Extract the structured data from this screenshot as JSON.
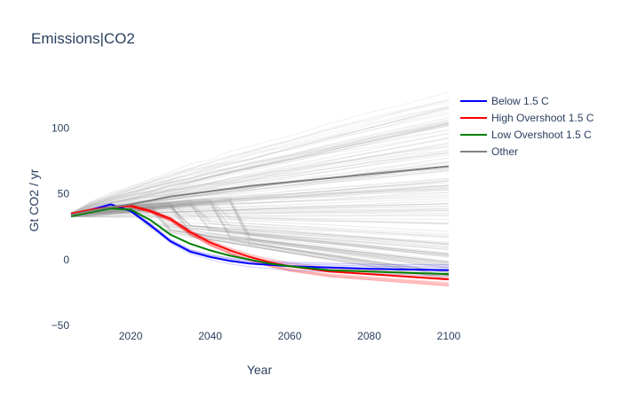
{
  "chart_data": {
    "type": "line",
    "title": "Emissions|CO2",
    "xlabel": "Year",
    "ylabel": "Gt CO2 / yr",
    "xlim": [
      2005,
      2100
    ],
    "ylim": [
      -50,
      130
    ],
    "x_ticks": [
      2020,
      2040,
      2060,
      2080,
      2100
    ],
    "y_ticks": [
      -50,
      0,
      50,
      100
    ],
    "grid": false,
    "legend_position": "top-right",
    "x": [
      2005,
      2010,
      2015,
      2020,
      2025,
      2030,
      2035,
      2040,
      2045,
      2050,
      2055,
      2060,
      2070,
      2080,
      2090,
      2100
    ],
    "series": [
      {
        "name": "Below 1.5 C",
        "color": "#0000ff",
        "values": [
          34,
          38,
          42,
          37,
          26,
          14,
          6,
          2,
          -1,
          -3,
          -4,
          -5,
          -6,
          -7,
          -7.5,
          -8
        ]
      },
      {
        "name": "High Overshoot 1.5 C",
        "color": "#ff0000",
        "values": [
          35,
          38,
          40,
          41,
          37,
          31,
          21,
          13,
          7,
          2,
          -2,
          -5,
          -9,
          -11,
          -13,
          -15
        ]
      },
      {
        "name": "Low Overshoot 1.5 C",
        "color": "#008000",
        "values": [
          33,
          36,
          39,
          38,
          30,
          19,
          12,
          7,
          3,
          0,
          -3,
          -5,
          -8,
          -9,
          -10,
          -11
        ]
      },
      {
        "name": "Other",
        "color": "#808080",
        "values": [
          34,
          37,
          40,
          42,
          45,
          48,
          50,
          52,
          54,
          56,
          57.5,
          59,
          62,
          65,
          68,
          71
        ]
      }
    ]
  }
}
